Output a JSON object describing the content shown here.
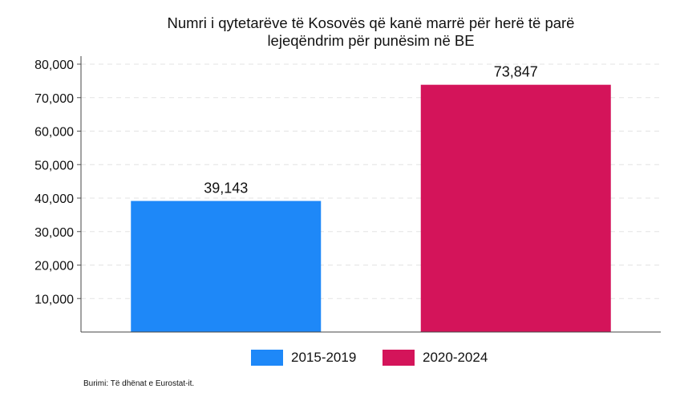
{
  "chart_data": {
    "type": "bar",
    "title": "Numri i qytetarëve të Kosovës që kanë marrë për herë të parë lejeqëndrim për punësim në BE",
    "title_lines": [
      "Numri i qytetarëve të Kosovës që kanë marrë për herë të parë",
      "lejeqëndrim për punësim në BE"
    ],
    "categories": [
      "2015-2019",
      "2020-2024"
    ],
    "values": [
      39143,
      73847
    ],
    "data_labels": [
      "39,143",
      "73,847"
    ],
    "colors": [
      "#1e88f8",
      "#d4145a"
    ],
    "xlabel": "",
    "ylabel": "",
    "ylim": [
      0,
      80000
    ],
    "yticks": [
      10000,
      20000,
      30000,
      40000,
      50000,
      60000,
      70000,
      80000
    ],
    "ytick_labels": [
      "10,000",
      "20,000",
      "30,000",
      "40,000",
      "50,000",
      "60,000",
      "70,000",
      "80,000"
    ],
    "grid": "horizontal dashed",
    "legend": {
      "placement": "bottom",
      "entries": [
        "2015-2019",
        "2020-2024"
      ]
    },
    "source": "Burimi: Të dhënat e Eurostat-it."
  }
}
